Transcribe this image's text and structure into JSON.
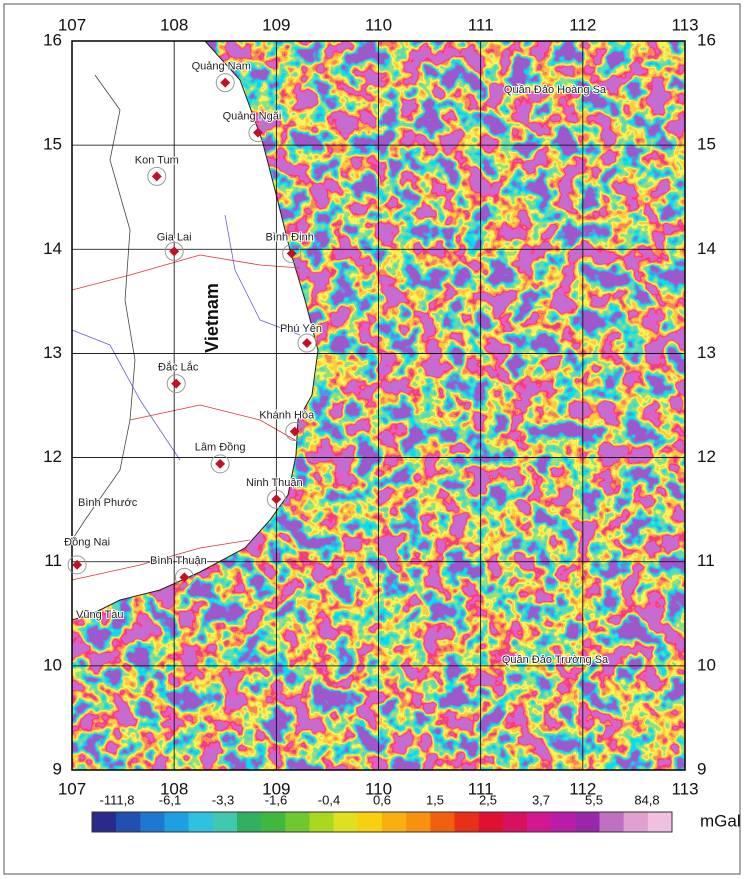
{
  "map": {
    "xticks": [
      107,
      108,
      109,
      110,
      111,
      112,
      113
    ],
    "yticks": [
      9,
      10,
      11,
      12,
      13,
      14,
      15,
      16
    ],
    "xlim": [
      107,
      113
    ],
    "ylim": [
      9,
      16
    ],
    "country": "Vietnam",
    "places": [
      {
        "label": "Quảng Nam",
        "lon": 108.5,
        "lat": 15.6
      },
      {
        "label": "Quảng Ngãi",
        "lon": 108.82,
        "lat": 15.12
      },
      {
        "label": "Kon Tum",
        "lon": 107.83,
        "lat": 14.7
      },
      {
        "label": "Gia Lai",
        "lon": 108.0,
        "lat": 13.98
      },
      {
        "label": "Bình Định",
        "lon": 109.15,
        "lat": 13.96
      },
      {
        "label": "Phú Yên",
        "lon": 109.3,
        "lat": 13.1
      },
      {
        "label": "Đắc Lắc",
        "lon": 108.02,
        "lat": 12.71
      },
      {
        "label": "Khánh Hòa",
        "lon": 109.18,
        "lat": 12.25
      },
      {
        "label": "Lâm Đồng",
        "lon": 108.45,
        "lat": 11.94
      },
      {
        "label": "Ninh Thuận",
        "lon": 109.0,
        "lat": 11.6
      },
      {
        "label": "Đồng Nai",
        "lon": 107.05,
        "lat": 10.97
      },
      {
        "label": "Bình Thuận",
        "lon": 108.1,
        "lat": 10.85
      }
    ],
    "region_labels": [
      "Bình Phước",
      "Vũng Tàu",
      "Quần Đảo Hoàng Sa",
      "Quần Đảo Trường Sa"
    ]
  },
  "colorbar": {
    "labels": [
      "-111,8",
      "-6,1",
      "-3,3",
      "-1,6",
      "-0,4",
      "0,6",
      "1,5",
      "2,5",
      "3,7",
      "5,5",
      "84,8"
    ],
    "unit": "mGal"
  }
}
